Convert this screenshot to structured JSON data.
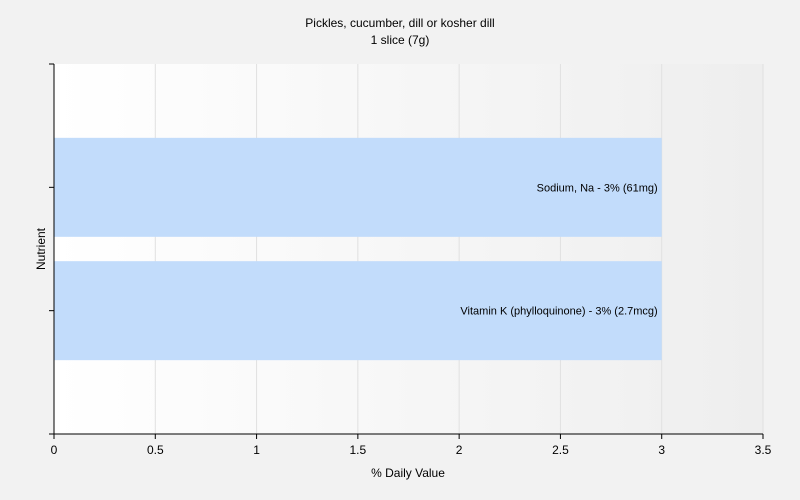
{
  "chart_data": {
    "type": "bar",
    "orientation": "horizontal",
    "title": "Pickles, cucumber, dill or kosher dill",
    "subtitle": "1 slice (7g)",
    "xlabel": "% Daily Value",
    "ylabel": "Nutrient",
    "xlim": [
      0,
      3.5
    ],
    "x_ticks": [
      "0",
      "0.5",
      "1",
      "1.5",
      "2",
      "2.5",
      "3",
      "3.5"
    ],
    "grid": true,
    "categories": [
      "Sodium, Na",
      "Vitamin K (phylloquinone)"
    ],
    "values": [
      3,
      3
    ],
    "bar_labels": [
      "Sodium, Na - 3% (61mg)",
      "Vitamin K (phylloquinone) - 3% (2.7mcg)"
    ],
    "colors": {
      "bar": "#c2dcfb",
      "background": "#f2f2f2",
      "grid": "#e0e0e0",
      "axis": "#000000"
    }
  }
}
